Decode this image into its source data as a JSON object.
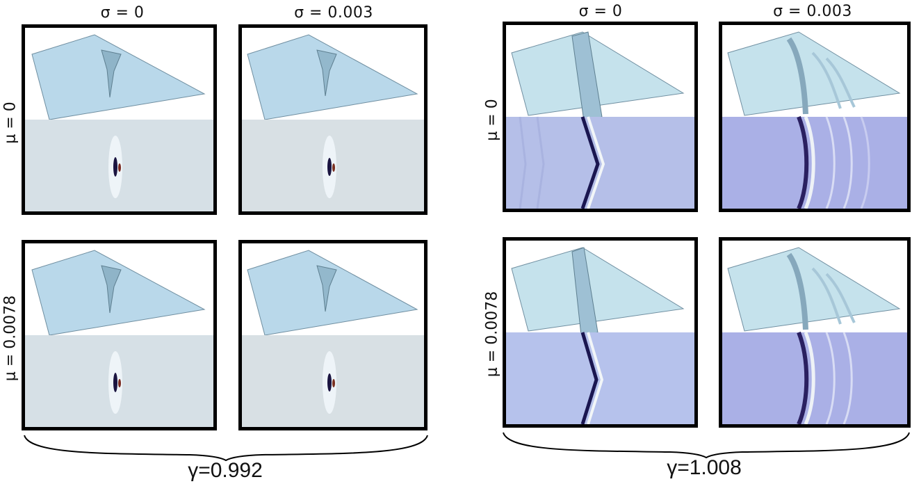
{
  "groups": [
    {
      "gamma_label": "γ=0.992",
      "col_labels": [
        "σ = 0",
        "σ = 0.003"
      ],
      "row_labels": [
        "μ = 0",
        "μ = 0.0078"
      ],
      "surface_color": "#b5d6e8",
      "map_color": "#d6e0e6"
    },
    {
      "gamma_label": "γ=1.008",
      "col_labels": [
        "σ = 0",
        "σ = 0.003"
      ],
      "row_labels": [
        "μ = 0",
        "μ = 0.0078"
      ],
      "surface_color": "#c3e0ea",
      "map_color": "#b3bde8"
    }
  ]
}
